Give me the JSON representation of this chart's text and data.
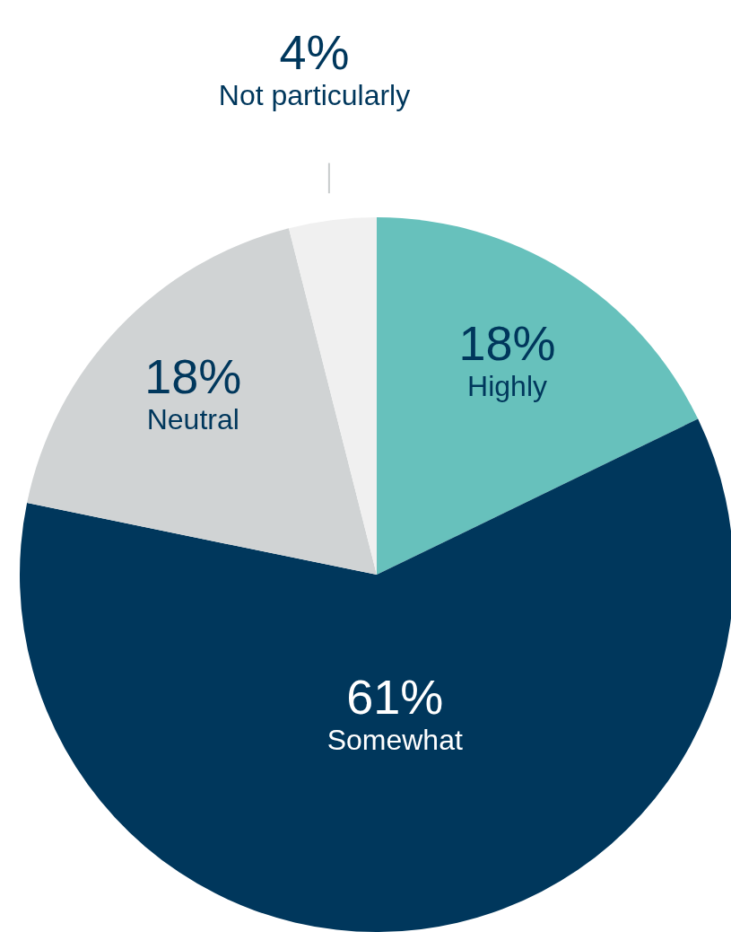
{
  "chart_data": {
    "type": "pie",
    "categories": [
      "Highly",
      "Somewhat",
      "Neutral",
      "Not particularly"
    ],
    "values": [
      18,
      61,
      18,
      4
    ],
    "value_labels": [
      "18%",
      "61%",
      "18%",
      "4%"
    ],
    "colors": [
      "#67c1bc",
      "#00375c",
      "#d0d3d4",
      "#f0f0f0"
    ]
  }
}
